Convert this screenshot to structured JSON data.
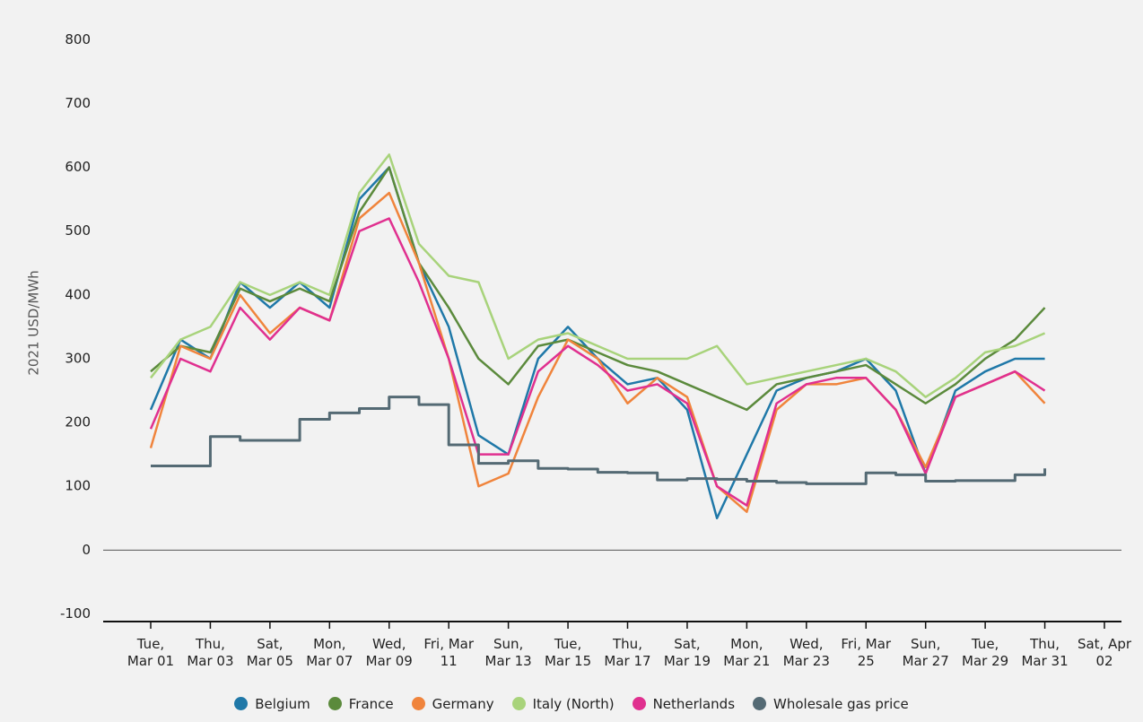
{
  "chart_data": {
    "type": "line",
    "y_label": "2021 USD/MWh",
    "x": [
      "Mar 01",
      "Mar 02",
      "Mar 03",
      "Mar 04",
      "Mar 05",
      "Mar 06",
      "Mar 07",
      "Mar 08",
      "Mar 09",
      "Mar 10",
      "Mar 11",
      "Mar 12",
      "Mar 13",
      "Mar 14",
      "Mar 15",
      "Mar 16",
      "Mar 17",
      "Mar 18",
      "Mar 19",
      "Mar 20",
      "Mar 21",
      "Mar 22",
      "Mar 23",
      "Mar 24",
      "Mar 25",
      "Mar 26",
      "Mar 27",
      "Mar 28",
      "Mar 29",
      "Mar 30",
      "Mar 31",
      "Apr 01",
      "Apr 02"
    ],
    "series": [
      {
        "name": "Belgium",
        "color": "#1f78a8",
        "values": [
          220,
          330,
          300,
          420,
          380,
          420,
          380,
          550,
          600,
          450,
          350,
          180,
          150,
          300,
          350,
          300,
          260,
          270,
          220,
          50,
          150,
          250,
          270,
          280,
          300,
          250,
          120,
          250,
          280,
          300,
          300,
          null,
          null
        ]
      },
      {
        "name": "France",
        "color": "#5b8a3c",
        "values": [
          280,
          320,
          310,
          410,
          390,
          410,
          390,
          530,
          600,
          450,
          380,
          300,
          260,
          320,
          330,
          310,
          290,
          280,
          260,
          240,
          220,
          260,
          270,
          280,
          290,
          260,
          230,
          260,
          300,
          330,
          380,
          null,
          null
        ]
      },
      {
        "name": "Germany",
        "color": "#f0843c",
        "values": [
          160,
          320,
          300,
          400,
          340,
          380,
          360,
          520,
          560,
          450,
          300,
          100,
          120,
          240,
          330,
          300,
          230,
          270,
          240,
          100,
          60,
          220,
          260,
          260,
          270,
          220,
          130,
          240,
          260,
          280,
          230,
          null,
          null
        ]
      },
      {
        "name": "Italy (North)",
        "color": "#a8d37b",
        "values": [
          270,
          330,
          350,
          420,
          400,
          420,
          400,
          560,
          620,
          480,
          430,
          420,
          300,
          330,
          340,
          320,
          300,
          300,
          300,
          320,
          260,
          270,
          280,
          290,
          300,
          280,
          240,
          270,
          310,
          320,
          340,
          null,
          null
        ]
      },
      {
        "name": "Netherlands",
        "color": "#e0308f",
        "values": [
          190,
          300,
          280,
          380,
          330,
          380,
          360,
          500,
          520,
          420,
          300,
          150,
          150,
          280,
          320,
          290,
          250,
          260,
          230,
          100,
          70,
          230,
          260,
          270,
          270,
          220,
          120,
          240,
          260,
          280,
          250,
          null,
          null
        ]
      },
      {
        "name": "Wholesale gas price",
        "color": "#546a74",
        "step": true,
        "values": [
          132,
          132,
          178,
          172,
          172,
          205,
          215,
          222,
          240,
          228,
          165,
          136,
          140,
          128,
          127,
          122,
          121,
          110,
          112,
          111,
          108,
          106,
          104,
          104,
          121,
          118,
          108,
          109,
          109,
          118,
          128,
          null,
          null
        ]
      }
    ],
    "ylim": [
      -112,
      830
    ],
    "yticks": [
      -100,
      0,
      100,
      200,
      300,
      400,
      500,
      600,
      700,
      800
    ],
    "xticks": [
      {
        "value": "Mar 01",
        "label": "Tue, Mar 01"
      },
      {
        "value": "Mar 03",
        "label": "Thu, Mar 03"
      },
      {
        "value": "Mar 05",
        "label": "Sat, Mar 05"
      },
      {
        "value": "Mar 07",
        "label": "Mon, Mar 07"
      },
      {
        "value": "Mar 09",
        "label": "Wed, Mar 09"
      },
      {
        "value": "Mar 11",
        "label": "Fri, Mar 11"
      },
      {
        "value": "Mar 13",
        "label": "Sun, Mar 13"
      },
      {
        "value": "Mar 15",
        "label": "Tue, Mar 15"
      },
      {
        "value": "Mar 17",
        "label": "Thu, Mar 17"
      },
      {
        "value": "Mar 19",
        "label": "Sat, Mar 19"
      },
      {
        "value": "Mar 21",
        "label": "Mon, Mar 21"
      },
      {
        "value": "Mar 23",
        "label": "Wed, Mar 23"
      },
      {
        "value": "Mar 25",
        "label": "Fri, Mar 25"
      },
      {
        "value": "Mar 27",
        "label": "Sun, Mar 27"
      },
      {
        "value": "Mar 29",
        "label": "Tue, Mar 29"
      },
      {
        "value": "Mar 31",
        "label": "Thu, Mar 31"
      },
      {
        "value": "Apr 02",
        "label": "Sat, Apr 02"
      }
    ],
    "zero_line": true,
    "legend": "bottom"
  }
}
